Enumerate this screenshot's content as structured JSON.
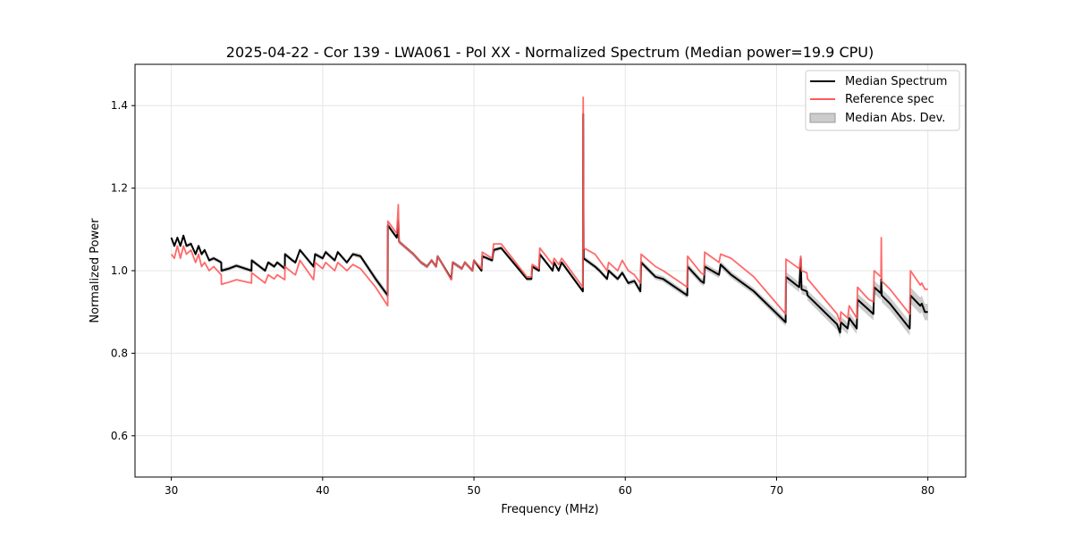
{
  "chart_data": {
    "type": "line",
    "title": "2025-04-22 - Cor 139 - LWA061 - Pol XX - Normalized Spectrum (Median power=19.9 CPU)",
    "xlabel": "Frequency (MHz)",
    "ylabel": "Normalized Power",
    "xlim": [
      27.6,
      82.5
    ],
    "ylim": [
      0.5,
      1.5
    ],
    "xticks": [
      30,
      40,
      50,
      60,
      70,
      80
    ],
    "xtick_labels": [
      "30",
      "40",
      "50",
      "60",
      "70",
      "80"
    ],
    "yticks": [
      0.6,
      0.8,
      1.0,
      1.2,
      1.4
    ],
    "ytick_labels": [
      "0.6",
      "0.8",
      "1.0",
      "1.2",
      "1.4"
    ],
    "grid": true,
    "legend_position": "top-right",
    "legend": [
      "Median Spectrum",
      "Reference spec",
      "Median Abs. Dev."
    ],
    "colors": {
      "median": "#000000",
      "reference": "#ff5a5a",
      "mad": "#bbbbbb"
    },
    "series_fields": [
      "frequency_mhz",
      "median",
      "reference",
      "mad"
    ],
    "points": [
      [
        30.0,
        1.08,
        1.04,
        0.005
      ],
      [
        30.2,
        1.06,
        1.03,
        0.005
      ],
      [
        30.4,
        1.08,
        1.06,
        0.005
      ],
      [
        30.6,
        1.06,
        1.03,
        0.005
      ],
      [
        30.8,
        1.085,
        1.06,
        0.005
      ],
      [
        31.0,
        1.06,
        1.04,
        0.005
      ],
      [
        31.3,
        1.065,
        1.05,
        0.005
      ],
      [
        31.6,
        1.04,
        1.02,
        0.005
      ],
      [
        31.8,
        1.06,
        1.04,
        0.005
      ],
      [
        32.0,
        1.04,
        1.01,
        0.005
      ],
      [
        32.2,
        1.05,
        1.02,
        0.005
      ],
      [
        32.5,
        1.025,
        1.0,
        0.005
      ],
      [
        32.8,
        1.03,
        1.01,
        0.005
      ],
      [
        33.3,
        1.02,
        0.99,
        0.005
      ],
      [
        33.31,
        1.0,
        0.967,
        0.005
      ],
      [
        33.8,
        1.005,
        0.972,
        0.005
      ],
      [
        34.3,
        1.012,
        0.978,
        0.005
      ],
      [
        35.3,
        1.0,
        0.97,
        0.005
      ],
      [
        35.31,
        1.025,
        0.995,
        0.005
      ],
      [
        36.2,
        1.0,
        0.97,
        0.005
      ],
      [
        36.4,
        1.02,
        0.99,
        0.005
      ],
      [
        36.8,
        1.01,
        0.98,
        0.005
      ],
      [
        37.0,
        1.02,
        0.99,
        0.005
      ],
      [
        37.5,
        1.005,
        0.978,
        0.005
      ],
      [
        37.51,
        1.04,
        1.01,
        0.005
      ],
      [
        38.0,
        1.025,
        0.995,
        0.005
      ],
      [
        38.2,
        1.02,
        0.99,
        0.005
      ],
      [
        38.5,
        1.05,
        1.025,
        0.005
      ],
      [
        39.4,
        1.01,
        0.978,
        0.005
      ],
      [
        39.5,
        1.04,
        1.02,
        0.005
      ],
      [
        40.0,
        1.03,
        1.005,
        0.005
      ],
      [
        40.2,
        1.045,
        1.02,
        0.005
      ],
      [
        40.8,
        1.025,
        1.0,
        0.005
      ],
      [
        41.0,
        1.045,
        1.02,
        0.005
      ],
      [
        41.6,
        1.02,
        1.0,
        0.005
      ],
      [
        42.0,
        1.04,
        1.015,
        0.005
      ],
      [
        42.5,
        1.035,
        1.005,
        0.006
      ],
      [
        43.5,
        0.98,
        0.96,
        0.008
      ],
      [
        44.3,
        0.94,
        0.915,
        0.008
      ],
      [
        44.31,
        1.11,
        1.12,
        0.006
      ],
      [
        44.9,
        1.08,
        1.09,
        0.005
      ],
      [
        45.0,
        1.12,
        1.16,
        0.005
      ],
      [
        45.05,
        1.07,
        1.07,
        0.005
      ],
      [
        46.0,
        1.04,
        1.04,
        0.005
      ],
      [
        46.5,
        1.02,
        1.02,
        0.005
      ],
      [
        46.9,
        1.01,
        1.01,
        0.005
      ],
      [
        47.2,
        1.025,
        1.025,
        0.005
      ],
      [
        47.5,
        1.01,
        1.01,
        0.005
      ],
      [
        47.6,
        1.035,
        1.035,
        0.005
      ],
      [
        48.5,
        0.98,
        0.978,
        0.005
      ],
      [
        48.6,
        1.02,
        1.02,
        0.005
      ],
      [
        49.2,
        1.005,
        1.005,
        0.005
      ],
      [
        49.4,
        1.02,
        1.02,
        0.005
      ],
      [
        49.9,
        1.0,
        1.0,
        0.005
      ],
      [
        50.0,
        1.025,
        1.025,
        0.005
      ],
      [
        50.5,
        1.0,
        1.005,
        0.005
      ],
      [
        50.55,
        1.035,
        1.045,
        0.005
      ],
      [
        51.2,
        1.025,
        1.03,
        0.005
      ],
      [
        51.3,
        1.05,
        1.065,
        0.005
      ],
      [
        51.8,
        1.055,
        1.065,
        0.005
      ],
      [
        53.5,
        0.98,
        0.985,
        0.005
      ],
      [
        53.8,
        0.98,
        0.985,
        0.005
      ],
      [
        53.85,
        1.01,
        1.015,
        0.005
      ],
      [
        54.3,
        1.0,
        1.005,
        0.005
      ],
      [
        54.35,
        1.04,
        1.055,
        0.005
      ],
      [
        55.2,
        1.0,
        1.015,
        0.005
      ],
      [
        55.3,
        1.02,
        1.03,
        0.005
      ],
      [
        55.6,
        1.0,
        1.015,
        0.005
      ],
      [
        55.8,
        1.02,
        1.03,
        0.005
      ],
      [
        57.2,
        0.95,
        0.96,
        0.005
      ],
      [
        57.22,
        1.38,
        1.42,
        0.03
      ],
      [
        57.25,
        1.03,
        1.055,
        0.006
      ],
      [
        58.0,
        1.01,
        1.04,
        0.006
      ],
      [
        58.3,
        1.0,
        1.025,
        0.006
      ],
      [
        58.8,
        0.98,
        1.0,
        0.006
      ],
      [
        58.9,
        1.0,
        1.02,
        0.006
      ],
      [
        59.5,
        0.98,
        1.0,
        0.006
      ],
      [
        59.8,
        0.995,
        1.025,
        0.006
      ],
      [
        60.2,
        0.97,
        1.0,
        0.006
      ],
      [
        60.6,
        0.975,
        0.99,
        0.006
      ],
      [
        61.0,
        0.95,
        0.97,
        0.007
      ],
      [
        61.05,
        1.02,
        1.04,
        0.007
      ],
      [
        62.0,
        0.985,
        1.01,
        0.007
      ],
      [
        62.5,
        0.98,
        1.0,
        0.007
      ],
      [
        63.5,
        0.955,
        0.975,
        0.007
      ],
      [
        64.1,
        0.94,
        0.96,
        0.007
      ],
      [
        64.12,
        1.01,
        1.035,
        0.008
      ],
      [
        65.0,
        0.975,
        0.995,
        0.008
      ],
      [
        65.2,
        0.97,
        0.99,
        0.008
      ],
      [
        65.25,
        1.01,
        1.045,
        0.008
      ],
      [
        66.2,
        0.99,
        1.02,
        0.008
      ],
      [
        66.3,
        1.015,
        1.04,
        0.008
      ],
      [
        67.0,
        0.99,
        1.03,
        0.008
      ],
      [
        68.5,
        0.95,
        0.985,
        0.008
      ],
      [
        70.6,
        0.875,
        0.895,
        0.009
      ],
      [
        70.62,
        0.985,
        1.028,
        0.012
      ],
      [
        71.5,
        0.96,
        1.005,
        0.012
      ],
      [
        71.6,
        1.03,
        1.035,
        0.012
      ],
      [
        71.65,
        0.955,
        1.0,
        0.012
      ],
      [
        72.0,
        0.95,
        0.995,
        0.012
      ],
      [
        72.05,
        0.94,
        0.98,
        0.012
      ],
      [
        74.0,
        0.87,
        0.895,
        0.014
      ],
      [
        74.2,
        0.85,
        0.875,
        0.014
      ],
      [
        74.25,
        0.875,
        0.9,
        0.014
      ],
      [
        74.7,
        0.86,
        0.885,
        0.014
      ],
      [
        74.8,
        0.885,
        0.915,
        0.014
      ],
      [
        75.3,
        0.86,
        0.885,
        0.014
      ],
      [
        75.35,
        0.93,
        0.96,
        0.015
      ],
      [
        76.1,
        0.905,
        0.93,
        0.015
      ],
      [
        76.4,
        0.895,
        0.925,
        0.015
      ],
      [
        76.45,
        0.96,
        1.0,
        0.016
      ],
      [
        76.9,
        0.945,
        0.985,
        0.016
      ],
      [
        76.92,
        0.98,
        1.08,
        0.016
      ],
      [
        76.95,
        0.94,
        0.975,
        0.016
      ],
      [
        77.5,
        0.92,
        0.955,
        0.016
      ],
      [
        78.8,
        0.86,
        0.895,
        0.017
      ],
      [
        78.85,
        0.94,
        1.0,
        0.02
      ],
      [
        79.5,
        0.915,
        0.965,
        0.02
      ],
      [
        79.6,
        0.92,
        0.97,
        0.02
      ],
      [
        79.8,
        0.9,
        0.955,
        0.02
      ],
      [
        80.0,
        0.9,
        0.955,
        0.02
      ]
    ]
  }
}
